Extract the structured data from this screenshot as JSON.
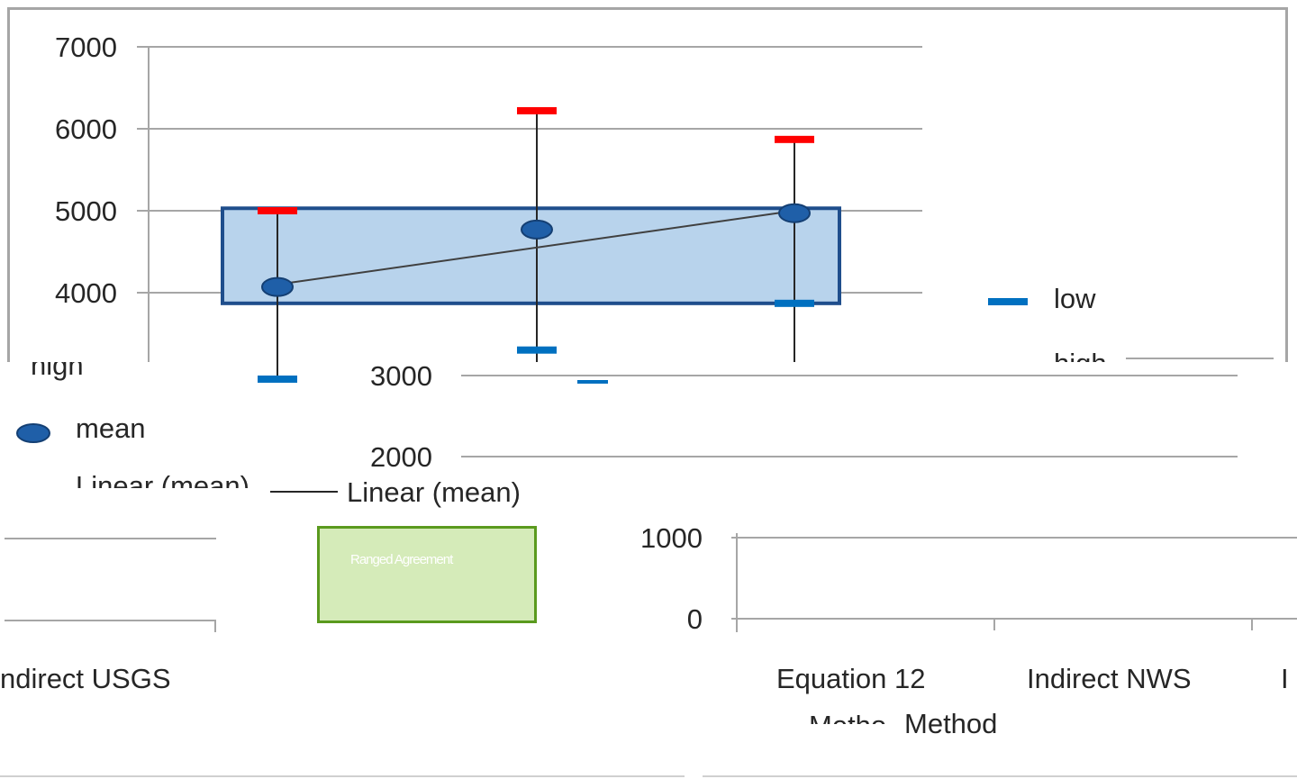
{
  "chart_data": {
    "type": "scatter",
    "categories": [
      "Indirect USGS",
      "Equation 12",
      "Indirect NWS"
    ],
    "series": [
      {
        "name": "low",
        "values": [
          2900,
          3300,
          3870
        ],
        "color": "#0070c0"
      },
      {
        "name": "high",
        "values": [
          5000,
          6220,
          5870
        ],
        "color": "#ff0000"
      },
      {
        "name": "mean",
        "values": [
          4070,
          4770,
          4970
        ],
        "color": "#1f5fa8"
      }
    ],
    "trendline": {
      "name": "Linear (mean)",
      "from": 4100,
      "to": 5000
    },
    "y_ticks_top": [
      "7000",
      "6000",
      "5000",
      "4000"
    ],
    "y_ticks_bottom": [
      "3000",
      "2000",
      "1000",
      "0"
    ],
    "ylim": [
      0,
      7000
    ],
    "highlight_box": {
      "y_range": [
        3870,
        5030
      ],
      "color": "#b8d3ec"
    },
    "x_labels_visible": [
      "ndirect USGS",
      "Equation 12",
      "Indirect NWS",
      "I"
    ],
    "xlabel_fragments": [
      "Metho",
      "Method"
    ],
    "legend": {
      "low_label": "low",
      "high_label": "high",
      "high_fragment": "high",
      "mean_label": "mean",
      "linear_label": "Linear (mean)",
      "linear_label_fragment": "Linear (mean)"
    },
    "green_box_label": "Ranged Agreement",
    "grid": true
  }
}
